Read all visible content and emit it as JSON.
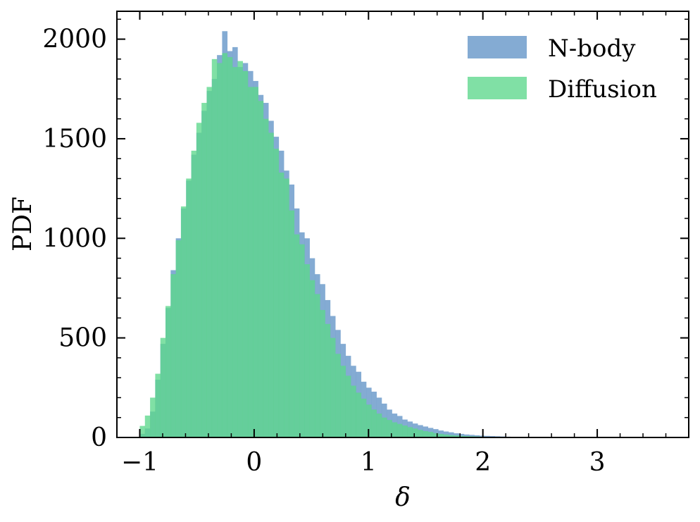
{
  "colors": {
    "nbody": "#6f9ccb",
    "diffusion": "#5cd78c",
    "axis": "#000000",
    "background": "#ffffff"
  },
  "chart_data": {
    "type": "histogram",
    "xlabel": "δ",
    "ylabel": "PDF",
    "xlim": [
      -1.2,
      3.8
    ],
    "ylim": [
      0,
      2140
    ],
    "xticks": [
      -1,
      0,
      1,
      2,
      3
    ],
    "xtick_labels": [
      "−1",
      "0",
      "1",
      "2",
      "3"
    ],
    "yticks": [
      0,
      500,
      1000,
      1500,
      2000
    ],
    "ytick_labels": [
      "0",
      "500",
      "1000",
      "1500",
      "2000"
    ],
    "legend_position": "top-right",
    "bin_start": -1.0,
    "bin_width": 0.045,
    "series": [
      {
        "name": "N-body",
        "color_key": "nbody",
        "values": [
          18,
          45,
          130,
          290,
          470,
          650,
          840,
          1000,
          1150,
          1290,
          1420,
          1530,
          1640,
          1740,
          1800,
          1920,
          2040,
          1940,
          1960,
          1860,
          1880,
          1840,
          1790,
          1720,
          1680,
          1590,
          1510,
          1440,
          1340,
          1270,
          1150,
          1030,
          1000,
          900,
          820,
          770,
          690,
          610,
          540,
          470,
          410,
          360,
          330,
          280,
          250,
          230,
          200,
          170,
          140,
          120,
          108,
          90,
          80,
          70,
          62,
          55,
          48,
          42,
          35,
          30,
          26,
          21,
          18,
          15,
          13,
          11,
          9,
          8,
          7,
          6,
          5,
          4,
          3,
          3,
          2,
          2,
          2,
          1,
          1,
          1
        ]
      },
      {
        "name": "Diffusion",
        "color_key": "diffusion",
        "values": [
          58,
          110,
          200,
          320,
          500,
          660,
          820,
          990,
          1160,
          1300,
          1440,
          1580,
          1680,
          1760,
          1900,
          1880,
          1930,
          1910,
          1860,
          1890,
          1840,
          1760,
          1760,
          1690,
          1600,
          1530,
          1450,
          1330,
          1300,
          1140,
          1020,
          970,
          870,
          790,
          720,
          640,
          570,
          500,
          420,
          360,
          310,
          260,
          225,
          195,
          165,
          140,
          120,
          100,
          88,
          76,
          68,
          60,
          52,
          45,
          38,
          32,
          28,
          22,
          18,
          15,
          12,
          10,
          8,
          7,
          6,
          5,
          4,
          3,
          3,
          2,
          2,
          1,
          1,
          1,
          1,
          1,
          1,
          0,
          0,
          0
        ]
      }
    ]
  }
}
